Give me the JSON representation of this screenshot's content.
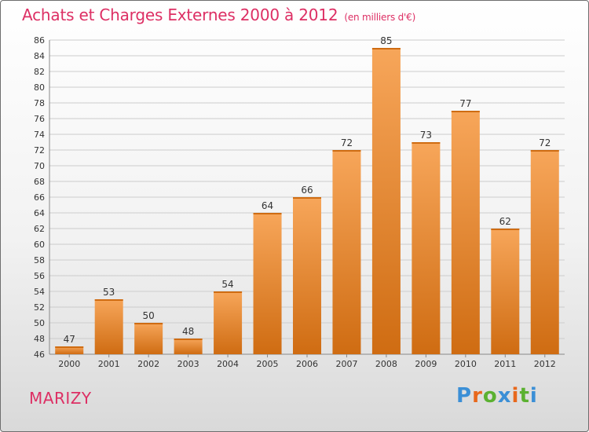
{
  "header": {
    "title": "Achats et Charges Externes 2000 à 2012",
    "unit": "(en milliers d'€)"
  },
  "footer": {
    "commune": "MARIZY",
    "logo": "Proxiti"
  },
  "colors": {
    "bar_top": "#f7a65a",
    "bar_bottom": "#cf6c12",
    "title": "#dd2f64",
    "logo_letters": [
      "#3b8fd6",
      "#e8681c",
      "#5bb131",
      "#3b8fd6",
      "#e8681c",
      "#5bb131",
      "#3b8fd6"
    ]
  },
  "chart_data": {
    "type": "bar",
    "title": "Achats et Charges Externes 2000 à 2012",
    "categories": [
      "2000",
      "2001",
      "2002",
      "2003",
      "2004",
      "2005",
      "2006",
      "2007",
      "2008",
      "2009",
      "2010",
      "2011",
      "2012"
    ],
    "values": [
      47,
      53,
      50,
      48,
      54,
      64,
      66,
      72,
      85,
      73,
      77,
      62,
      72
    ],
    "xlabel": "",
    "ylabel": "",
    "ylim": [
      46,
      86
    ],
    "yticks": [
      46,
      48,
      50,
      52,
      54,
      56,
      58,
      60,
      62,
      64,
      66,
      68,
      70,
      72,
      74,
      76,
      78,
      80,
      82,
      84,
      86
    ],
    "grid": true,
    "data_labels": true
  }
}
